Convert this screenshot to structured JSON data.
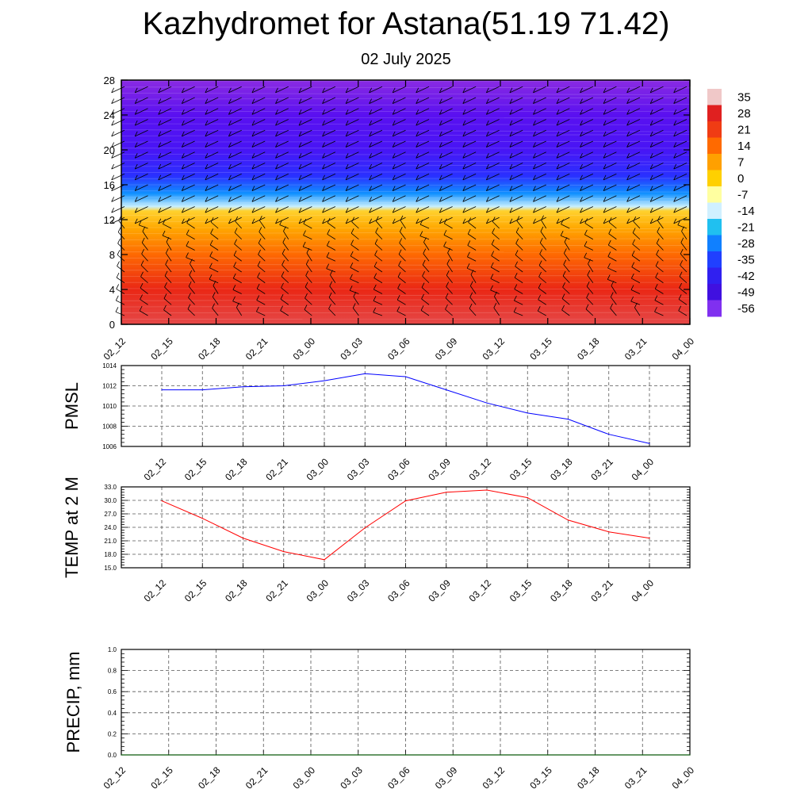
{
  "title": "Kazhydromet for Astana(51.19 71.42)",
  "subtitle": "02 July 2025",
  "time_labels": [
    "02_12",
    "02_15",
    "02_18",
    "02_21",
    "03_00",
    "03_03",
    "03_06",
    "03_09",
    "03_12",
    "03_15",
    "03_18",
    "03_21",
    "04_00"
  ],
  "chart_data": [
    {
      "type": "heatmap",
      "title": "",
      "ylabel": "",
      "x": [
        "02_12",
        "02_15",
        "02_18",
        "02_21",
        "03_00",
        "03_03",
        "03_06",
        "03_09",
        "03_12",
        "03_15",
        "03_18",
        "03_21",
        "04_00"
      ],
      "yticks": [
        0,
        4,
        8,
        12,
        16,
        20,
        24,
        28
      ],
      "ylim": [
        0,
        28
      ],
      "colorbar": {
        "labels": [
          "35",
          "28",
          "21",
          "14",
          "7",
          "0",
          "-7",
          "-14",
          "-21",
          "-28",
          "-35",
          "-42",
          "-49",
          "-56"
        ],
        "colors": [
          "#f0c8c8",
          "#e02020",
          "#f03c14",
          "#ff6a00",
          "#ffa000",
          "#ffd000",
          "#ffffa0",
          "#d0f0ff",
          "#20c0f0",
          "#1080ff",
          "#2040ff",
          "#3020f0",
          "#4010e0",
          "#8030f0"
        ]
      },
      "temperature_profile": [
        {
          "level": 0,
          "value": 30
        },
        {
          "level": 4,
          "value": 25
        },
        {
          "level": 8,
          "value": 15
        },
        {
          "level": 11,
          "value": 8
        },
        {
          "level": 13,
          "value": 2
        },
        {
          "level": 13.5,
          "value": -14
        },
        {
          "level": 15,
          "value": -28
        },
        {
          "level": 17,
          "value": -42
        },
        {
          "level": 20,
          "value": -52
        },
        {
          "level": 24,
          "value": -56
        },
        {
          "level": 28,
          "value": -60
        }
      ],
      "wind_barbs": "present"
    },
    {
      "type": "line",
      "ylabel": "PMSL",
      "x": [
        "02_12",
        "02_15",
        "02_18",
        "02_21",
        "03_00",
        "03_03",
        "03_06",
        "03_09",
        "03_12",
        "03_15",
        "03_18",
        "03_21",
        "04_00"
      ],
      "ylim": [
        1006,
        1014
      ],
      "yticks": [
        "1006",
        "1008",
        "1010",
        "1012",
        "1014"
      ],
      "series": [
        {
          "values": [
            1011.6,
            1011.6,
            1011.9,
            1012.0,
            1012.5,
            1013.2,
            1012.9,
            1011.6,
            1010.3,
            1009.3,
            1008.7,
            1007.2,
            1006.3
          ],
          "color": "#0000ff"
        }
      ],
      "grid": true
    },
    {
      "type": "line",
      "ylabel": "TEMP at 2 M",
      "x": [
        "02_12",
        "02_15",
        "02_18",
        "02_21",
        "03_00",
        "03_03",
        "03_06",
        "03_09",
        "03_12",
        "03_15",
        "03_18",
        "03_21",
        "04_00"
      ],
      "ylim": [
        15.0,
        33.0
      ],
      "yticks": [
        "15.0",
        "18.0",
        "21.0",
        "24.0",
        "27.0",
        "30.0",
        "33.0"
      ],
      "series": [
        {
          "values": [
            29.9,
            26.0,
            21.6,
            18.6,
            16.8,
            23.9,
            29.9,
            31.8,
            32.3,
            30.6,
            25.6,
            23.0,
            21.6
          ],
          "color": "#ff0000"
        }
      ],
      "grid": true
    },
    {
      "type": "line",
      "ylabel": "PRECIP, mm",
      "x": [
        "02_12",
        "02_15",
        "02_18",
        "02_21",
        "03_00",
        "03_03",
        "03_06",
        "03_09",
        "03_12",
        "03_15",
        "03_18",
        "03_21",
        "04_00"
      ],
      "ylim": [
        0.0,
        1.0
      ],
      "yticks": [
        "0.0",
        "0.2",
        "0.4",
        "0.6",
        "0.8",
        "1.0"
      ],
      "series": [
        {
          "values": [
            0,
            0,
            0,
            0,
            0,
            0,
            0,
            0,
            0,
            0,
            0,
            0,
            0
          ],
          "color": "#006400"
        }
      ],
      "grid": true
    }
  ]
}
